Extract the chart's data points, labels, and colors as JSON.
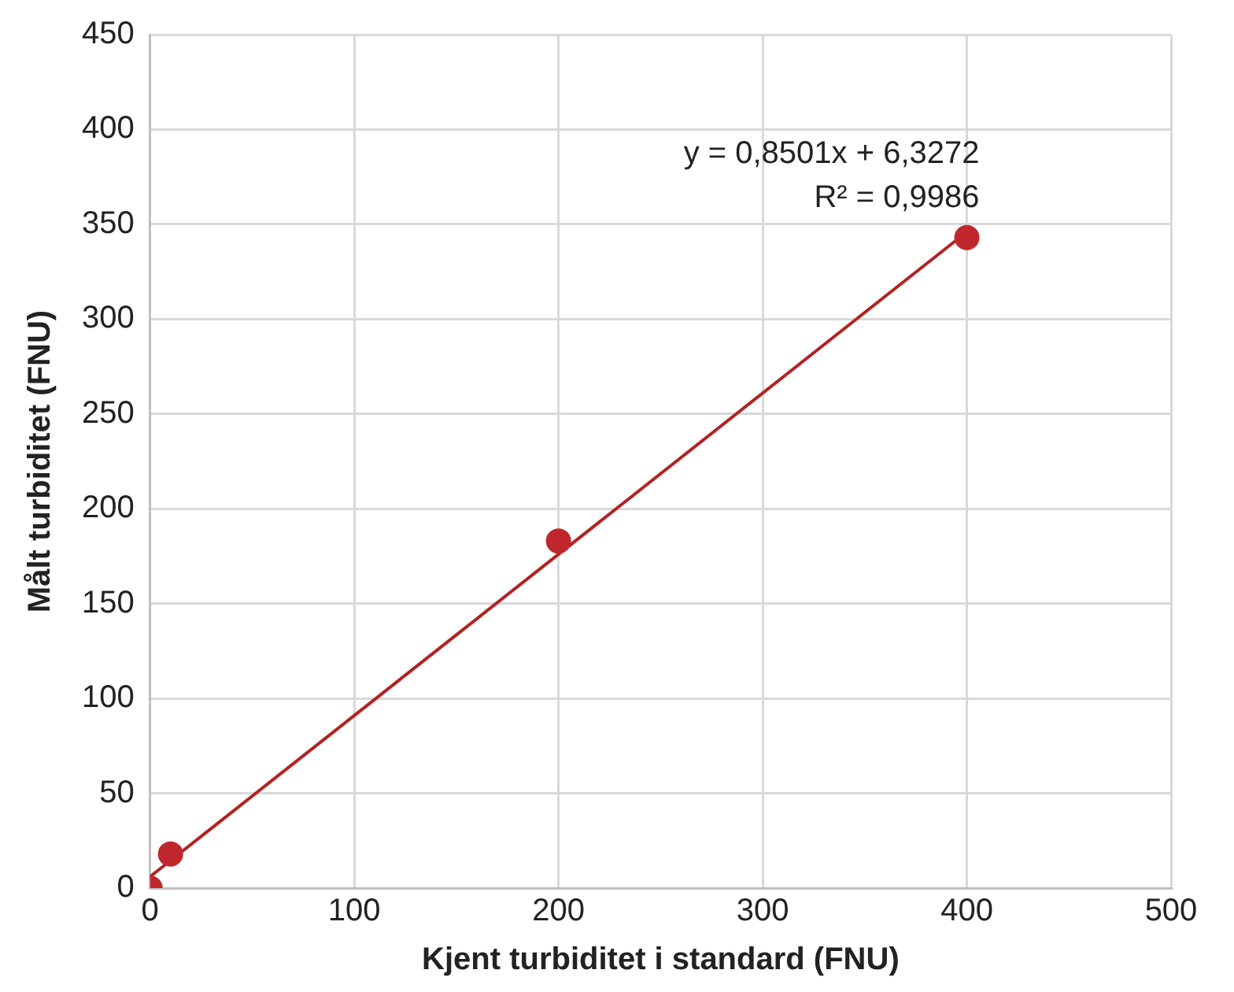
{
  "chart_data": {
    "type": "scatter",
    "xlabel": "Kjent turbiditet i standard (FNU)",
    "ylabel": "Målt turbiditet (FNU)",
    "xlim": [
      0,
      500
    ],
    "xticks": [
      0,
      100,
      200,
      300,
      400,
      500
    ],
    "ylim": [
      0,
      450
    ],
    "yticks": [
      0,
      50,
      100,
      150,
      200,
      250,
      300,
      350,
      400,
      450
    ],
    "grid": true,
    "legend": false,
    "marker": "circle",
    "series": [
      {
        "color": "#c0272d",
        "x": [
          0,
          10,
          200,
          400
        ],
        "values": [
          0,
          18,
          183,
          343
        ]
      },
      {
        "type": "line",
        "color": "#b22222",
        "x": [
          0,
          400
        ],
        "values": [
          6,
          346
        ],
        "marker": "none",
        "line_style": "solid"
      }
    ],
    "annotations": [
      "y = 0,8501x + 6,3272",
      "R² = 0,9986"
    ]
  }
}
